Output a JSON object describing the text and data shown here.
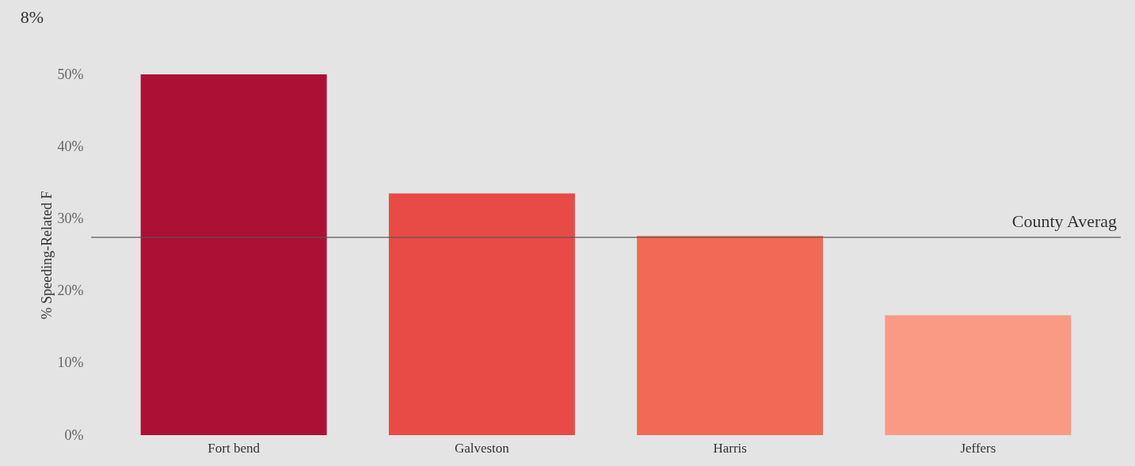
{
  "chart_data": {
    "type": "bar",
    "categories": [
      "Fort bend",
      "Galveston",
      "Harris",
      "Jeffers"
    ],
    "values": [
      50,
      33.5,
      27.6,
      16.6
    ],
    "colors": [
      "#ad1035",
      "#e84a45",
      "#f26a55",
      "#f99a84"
    ],
    "ylabel": "% Speeding-Related F",
    "ylim": [
      0,
      50
    ],
    "yticks": [
      {
        "value": 0,
        "label": "0%"
      },
      {
        "value": 10,
        "label": "10%"
      },
      {
        "value": 20,
        "label": "20%"
      },
      {
        "value": 30,
        "label": "30%"
      },
      {
        "value": 40,
        "label": "40%"
      },
      {
        "value": 50,
        "label": "50%"
      }
    ],
    "ref_lines": [
      {
        "axis": "y",
        "value": 27.4,
        "label": "County Averag",
        "color": "#555555"
      }
    ],
    "annotations": [
      "8%"
    ],
    "grid": false
  }
}
